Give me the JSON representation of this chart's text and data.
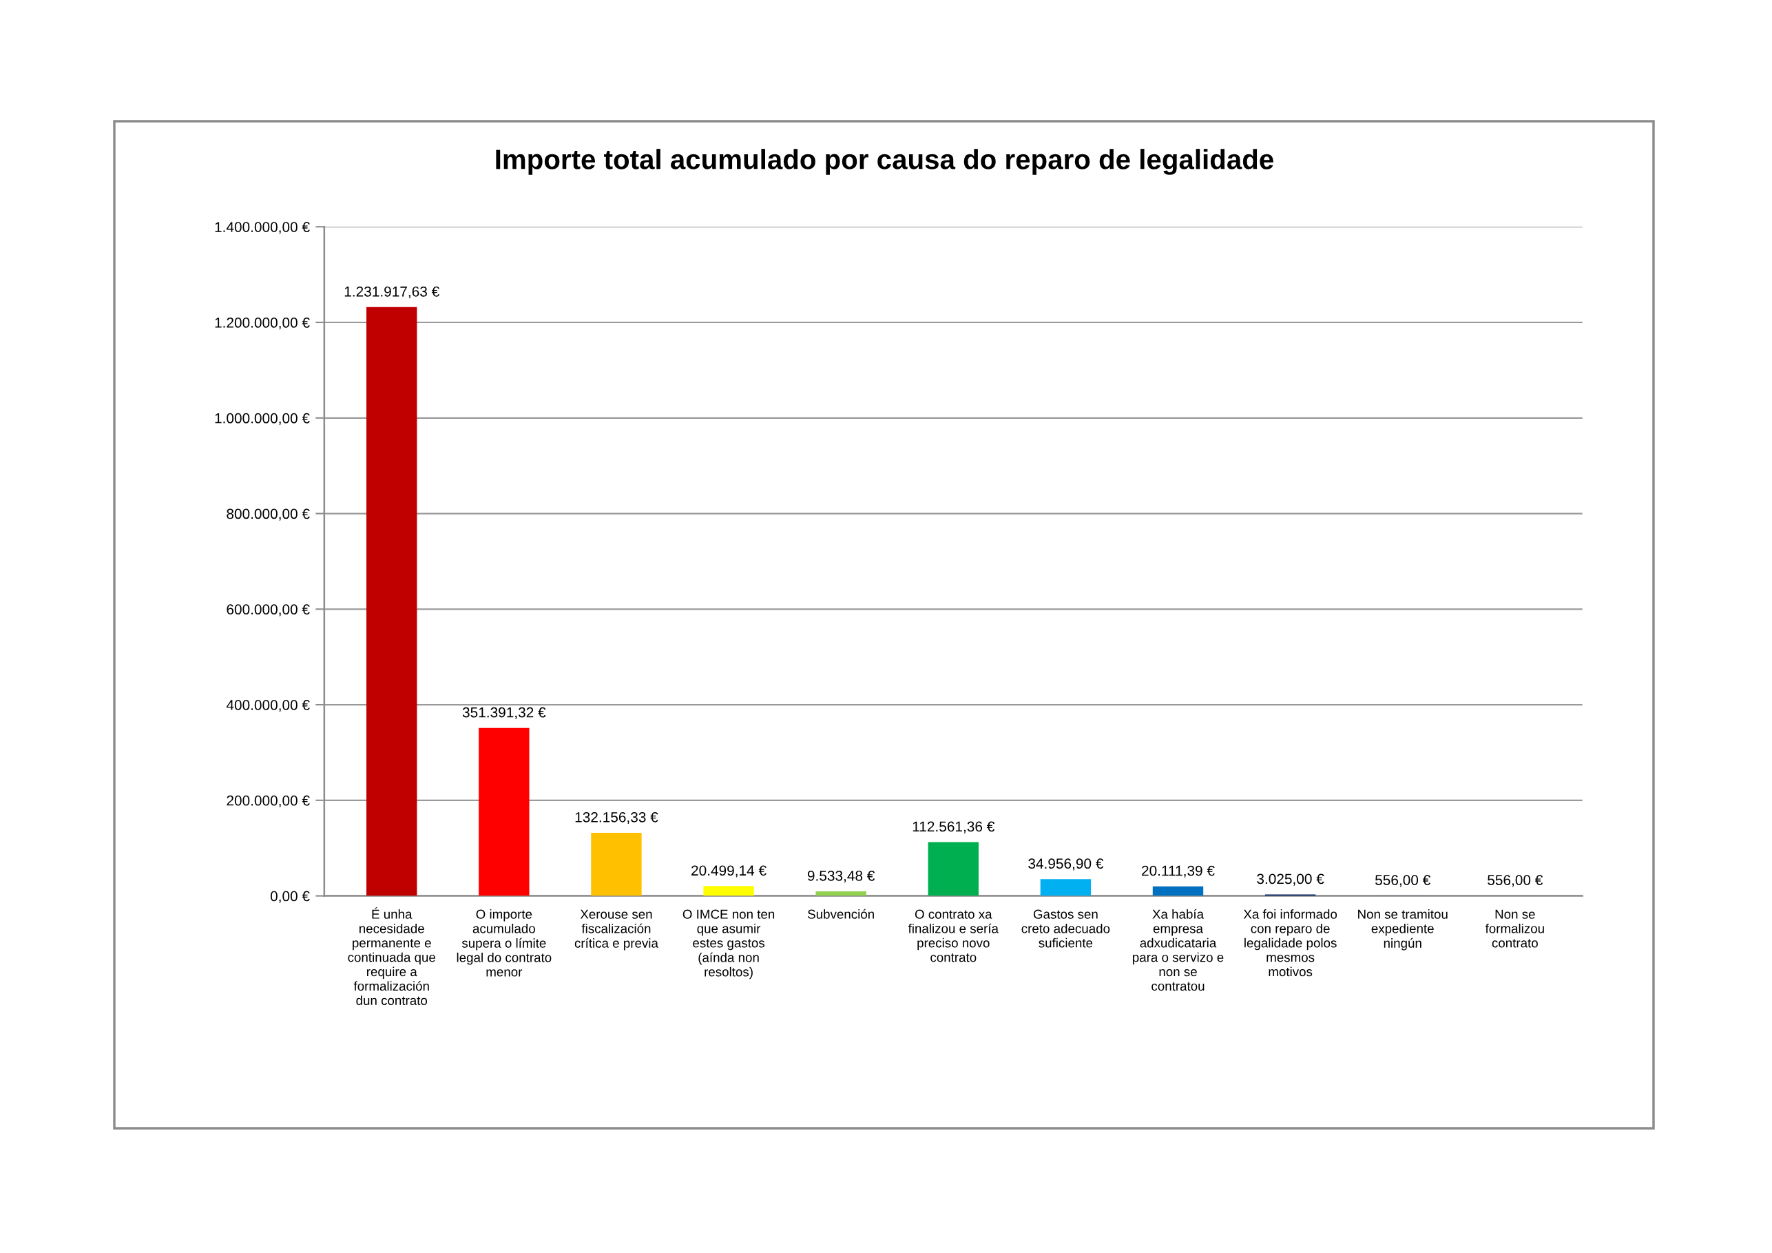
{
  "chart_data": {
    "type": "bar",
    "title": "Importe total acumulado por causa do reparo de legalidade",
    "categories": [
      "É unha\nnecesidade\npermanente e\ncontinuada que\nrequire a\nformalización\ndun contrato",
      "O importe\nacumulado\nsupera o límite\nlegal do contrato\nmenor",
      "Xerouse sen\nfiscalización\ncrítica e previa",
      "O IMCE non ten\nque asumir\nestes gastos\n(aínda non\nresoltos)",
      "Subvención",
      "O contrato xa\nfinalizou e sería\npreciso novo\ncontrato",
      "Gastos sen\ncreto adecuado\nsuficiente",
      "Xa había\nempresa\nadxudicataria\npara o servizo e\nnon se\ncontratou",
      "Xa foi informado\ncon reparo de\nlegalidade polos\nmesmos\nmotivos",
      "Non se tramitou\nexpediente\nningún",
      "Non se\nformalizou\ncontrato"
    ],
    "values": [
      1231917.63,
      351391.32,
      132156.33,
      20499.14,
      9533.48,
      112561.36,
      34956.9,
      20111.39,
      3025.0,
      556.0,
      556.0
    ],
    "value_labels": [
      "1.231.917,63 €",
      "351.391,32 €",
      "132.156,33 €",
      "20.499,14 €",
      "9.533,48 €",
      "112.561,36 €",
      "34.956,90 €",
      "20.111,39 €",
      "3.025,00 €",
      "556,00 €",
      "556,00 €"
    ],
    "colors": [
      "#c00000",
      "#ff0000",
      "#ffc000",
      "#ffff00",
      "#92d050",
      "#00b050",
      "#00b0f0",
      "#0070c0",
      "#002060",
      "#7030a0",
      "#6e6e6e"
    ],
    "ylim": [
      0,
      1400000
    ],
    "yticks": [
      {
        "value": 0,
        "label": "0,00 €"
      },
      {
        "value": 200000,
        "label": "200.000,00 €"
      },
      {
        "value": 400000,
        "label": "400.000,00 €"
      },
      {
        "value": 600000,
        "label": "600.000,00 €"
      },
      {
        "value": 800000,
        "label": "800.000,00 €"
      },
      {
        "value": 1000000,
        "label": "1.000.000,00 €"
      },
      {
        "value": 1200000,
        "label": "1.200.000,00 €"
      },
      {
        "value": 1400000,
        "label": "1.400.000,00 €"
      }
    ],
    "grid": "y"
  }
}
